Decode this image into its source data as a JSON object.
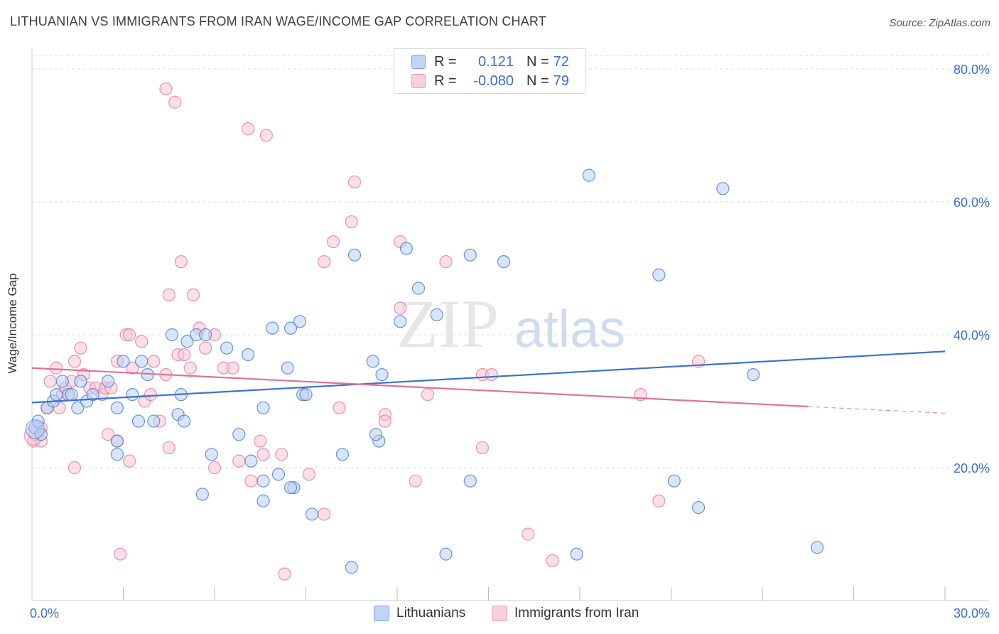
{
  "header": {
    "title": "LITHUANIAN VS IMMIGRANTS FROM IRAN WAGE/INCOME GAP CORRELATION CHART",
    "source": "Source: ZipAtlas.com"
  },
  "watermark": {
    "zip": "ZIP",
    "atlas": "atlas"
  },
  "legend": {
    "rows": [
      {
        "r_label": "R =",
        "r_value": "0.121",
        "n_label": "N =",
        "n_value": "72",
        "color": "#7aa3e0"
      },
      {
        "r_label": "R =",
        "r_value": "-0.080",
        "n_label": "N =",
        "n_value": "79",
        "color": "#eb9ab6"
      }
    ]
  },
  "bottom_legend": {
    "items": [
      {
        "label": "Lithuanians",
        "color": "#7aa3e0"
      },
      {
        "label": "Immigrants from Iran",
        "color": "#eb9ab6"
      }
    ]
  },
  "chart_data": {
    "type": "scatter",
    "ylabel": "Wage/Income Gap",
    "xlim": [
      0,
      30
    ],
    "ylim": [
      0,
      80
    ],
    "x_ticks_labeled": [
      "0.0%",
      "30.0%"
    ],
    "y_ticks_labeled": [
      "20.0%",
      "40.0%",
      "60.0%",
      "80.0%"
    ],
    "y_tick_values": [
      20,
      40,
      60,
      80
    ],
    "grid": "horizontal dashed",
    "colors": {
      "blue": "#3a73d0",
      "pink": "#e3709a",
      "blue_fill": "#b9d0f2",
      "pink_fill": "#f7c6d6",
      "axis_label": "#3a6fd0"
    },
    "series": [
      {
        "name": "Lithuanians",
        "trend": {
          "x": [
            0,
            30
          ],
          "y": [
            29.8,
            37.5
          ],
          "style": "solid"
        },
        "points": [
          [
            0.1,
            26
          ],
          [
            0.2,
            27
          ],
          [
            0.5,
            29
          ],
          [
            0.7,
            30
          ],
          [
            0.8,
            31
          ],
          [
            1.0,
            33
          ],
          [
            1.2,
            31
          ],
          [
            1.3,
            31
          ],
          [
            1.5,
            29
          ],
          [
            1.6,
            33
          ],
          [
            1.8,
            30
          ],
          [
            2.0,
            31
          ],
          [
            2.5,
            33
          ],
          [
            2.8,
            29
          ],
          [
            3.0,
            36
          ],
          [
            3.3,
            31
          ],
          [
            3.5,
            27
          ],
          [
            3.6,
            36
          ],
          [
            3.8,
            34
          ],
          [
            4.6,
            40
          ],
          [
            4.9,
            31
          ],
          [
            5.1,
            39
          ],
          [
            5.4,
            40
          ],
          [
            4.8,
            28
          ],
          [
            5.0,
            27
          ],
          [
            5.7,
            40
          ],
          [
            6.4,
            38
          ],
          [
            7.9,
            41
          ],
          [
            8.4,
            35
          ],
          [
            8.5,
            41
          ],
          [
            8.8,
            42
          ],
          [
            8.9,
            31
          ],
          [
            9.0,
            31
          ],
          [
            10.6,
            52
          ],
          [
            12.1,
            42
          ],
          [
            11.4,
            24
          ],
          [
            11.5,
            34
          ],
          [
            11.2,
            36
          ],
          [
            12.3,
            53
          ],
          [
            12.7,
            47
          ],
          [
            13.3,
            43
          ],
          [
            14.4,
            52
          ],
          [
            15.5,
            51
          ],
          [
            18.3,
            64
          ],
          [
            20.6,
            49
          ],
          [
            22.7,
            62
          ],
          [
            23.7,
            34
          ],
          [
            2.8,
            22
          ],
          [
            5.9,
            22
          ],
          [
            6.8,
            25
          ],
          [
            7.6,
            29
          ],
          [
            7.2,
            21
          ],
          [
            7.6,
            18
          ],
          [
            8.1,
            19
          ],
          [
            8.6,
            17
          ],
          [
            8.5,
            17
          ],
          [
            9.2,
            13
          ],
          [
            10.2,
            22
          ],
          [
            11.3,
            25
          ],
          [
            13.6,
            7
          ],
          [
            14.4,
            18
          ],
          [
            17.9,
            7
          ],
          [
            21.1,
            18
          ],
          [
            21.9,
            14
          ],
          [
            25.8,
            8
          ],
          [
            10.5,
            5
          ],
          [
            0.3,
            25
          ],
          [
            2.8,
            24
          ],
          [
            4.0,
            27
          ],
          [
            7.6,
            15
          ],
          [
            5.6,
            16
          ],
          [
            7.1,
            37
          ]
        ]
      },
      {
        "name": "Immigrants from Iran",
        "trend": {
          "x": [
            0,
            25.5
          ],
          "y": [
            35.0,
            29.2
          ],
          "style": "solid",
          "dashed_to": [
            30,
            28.2
          ]
        },
        "points": [
          [
            0.05,
            24
          ],
          [
            0.3,
            26
          ],
          [
            0.5,
            29
          ],
          [
            0.6,
            33
          ],
          [
            0.8,
            35
          ],
          [
            0.9,
            29
          ],
          [
            1.0,
            31
          ],
          [
            1.1,
            32
          ],
          [
            1.3,
            33
          ],
          [
            1.4,
            36
          ],
          [
            1.6,
            38
          ],
          [
            1.7,
            34
          ],
          [
            1.9,
            32
          ],
          [
            2.1,
            32
          ],
          [
            2.3,
            31
          ],
          [
            2.4,
            32
          ],
          [
            2.6,
            32
          ],
          [
            2.8,
            36
          ],
          [
            3.1,
            40
          ],
          [
            3.3,
            35
          ],
          [
            3.6,
            39
          ],
          [
            3.7,
            30
          ],
          [
            3.9,
            31
          ],
          [
            4.0,
            36
          ],
          [
            4.2,
            27
          ],
          [
            4.4,
            34
          ],
          [
            4.8,
            37
          ],
          [
            5.0,
            37
          ],
          [
            5.2,
            35
          ],
          [
            5.5,
            41
          ],
          [
            5.7,
            38
          ],
          [
            6.0,
            40
          ],
          [
            6.3,
            35
          ],
          [
            6.6,
            35
          ],
          [
            4.4,
            77
          ],
          [
            4.7,
            75
          ],
          [
            7.1,
            71
          ],
          [
            7.7,
            70
          ],
          [
            10.6,
            63
          ],
          [
            10.5,
            57
          ],
          [
            9.9,
            54
          ],
          [
            12.1,
            54
          ],
          [
            13.6,
            51
          ],
          [
            4.9,
            51
          ],
          [
            4.5,
            46
          ],
          [
            5.3,
            46
          ],
          [
            3.2,
            40
          ],
          [
            4.5,
            23
          ],
          [
            2.5,
            25
          ],
          [
            3.2,
            21
          ],
          [
            1.4,
            20
          ],
          [
            6.8,
            21
          ],
          [
            7.6,
            22
          ],
          [
            8.2,
            22
          ],
          [
            7.5,
            24
          ],
          [
            7.2,
            18
          ],
          [
            9.1,
            19
          ],
          [
            9.6,
            13
          ],
          [
            12.6,
            18
          ],
          [
            10.1,
            29
          ],
          [
            11.6,
            28
          ],
          [
            11.6,
            27
          ],
          [
            13.0,
            31
          ],
          [
            14.8,
            23
          ],
          [
            14.8,
            34
          ],
          [
            15.1,
            34
          ],
          [
            16.3,
            10
          ],
          [
            17.1,
            6
          ],
          [
            20.6,
            15
          ],
          [
            20.0,
            31
          ],
          [
            21.9,
            36
          ],
          [
            8.3,
            4
          ],
          [
            2.9,
            7
          ],
          [
            0.1,
            25
          ],
          [
            0.3,
            24
          ],
          [
            12.1,
            44
          ],
          [
            9.6,
            51
          ],
          [
            2.8,
            24
          ],
          [
            6.0,
            20
          ]
        ]
      }
    ]
  }
}
